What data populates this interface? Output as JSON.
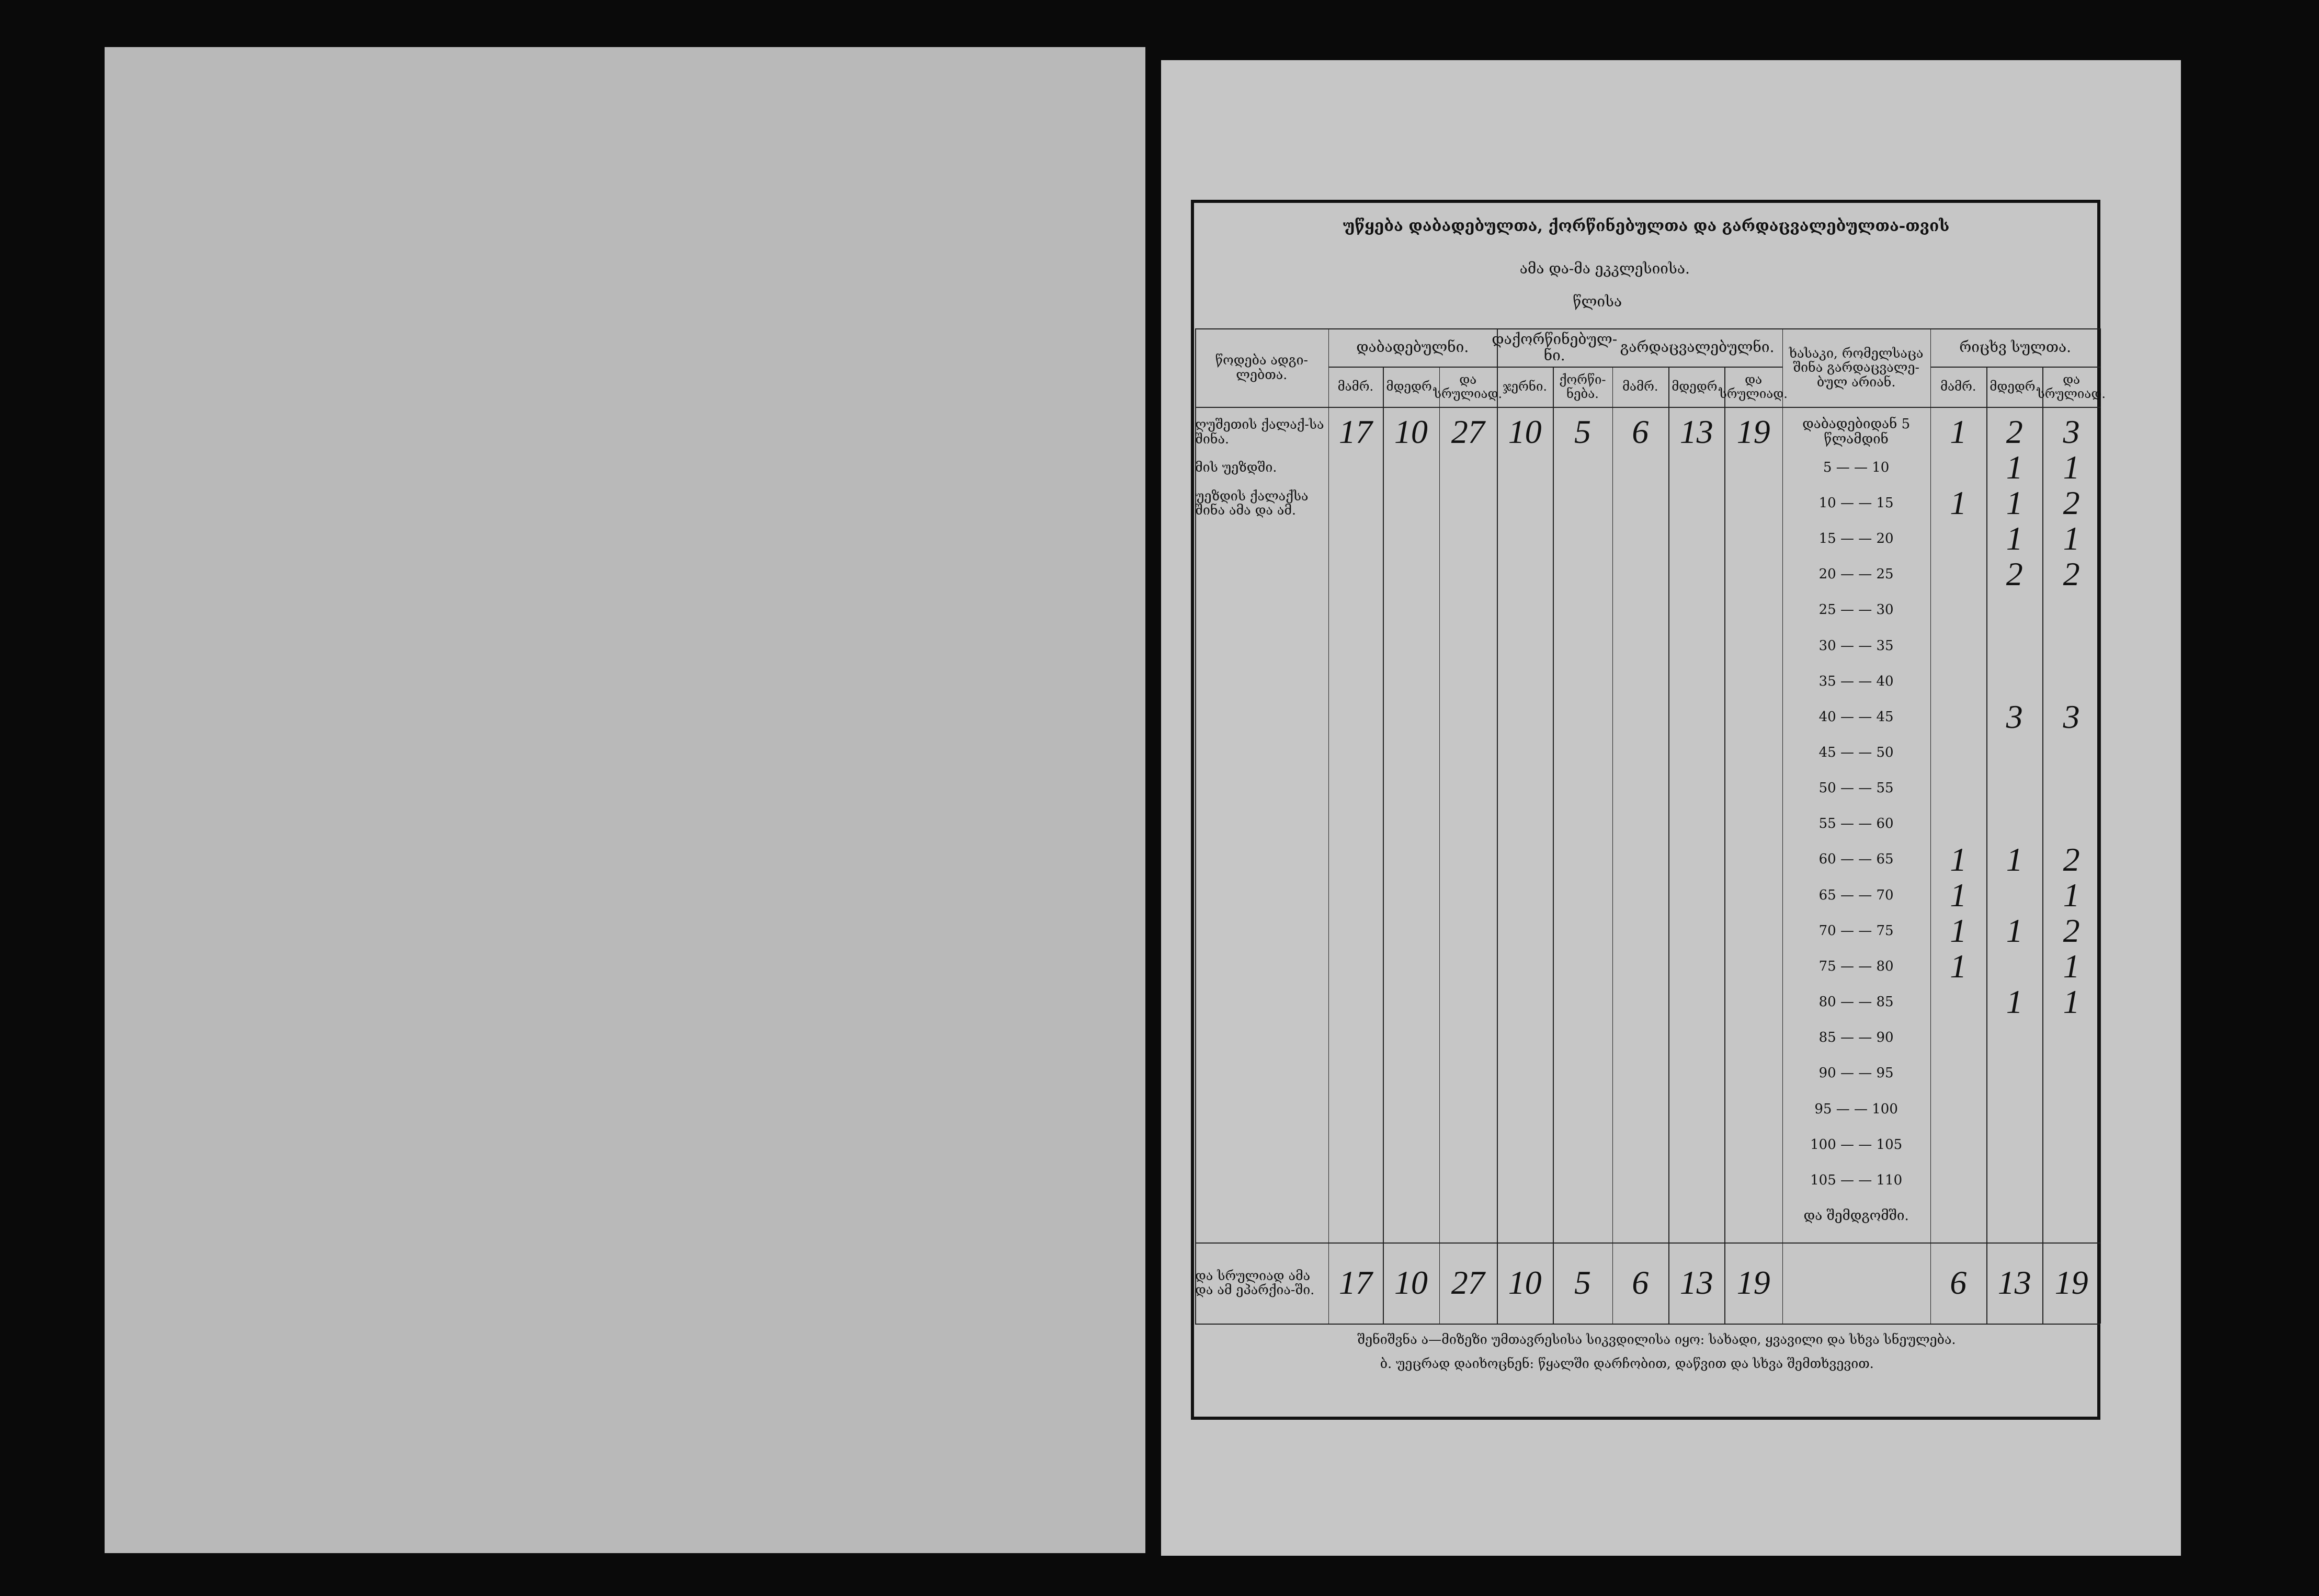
{
  "header": {
    "title": "უწყება დაბადებულთა, ქორწინებულთა და გარდაცვალებულთა-თვის",
    "church_label": "ამა და-მა ეკკლესიისა.",
    "year_label": "წლისა"
  },
  "table": {
    "group_headers": [
      "დაბადებულნი.",
      "დაქორწინებულ-ნი.",
      "გარდაცვალებულნი.",
      "რიცხვ სულთა."
    ],
    "column_headers": [
      "წოდება ადგი-ლებთა.",
      "მამრ.",
      "მდედრ.",
      "და სრულიად.",
      "ჯერნი.",
      "ქორწი-ნება.",
      "მამრ.",
      "მდედრ.",
      "და სრულიად.",
      "ხასაკი, რომელსაცა შინა გარდაცვალე-ბულ არიან.",
      "მამრ.",
      "მდედრ.",
      "და სრულიად."
    ],
    "rows": [
      [
        "ღუშეთის ქალაქ-სა შინა.",
        17,
        10,
        27,
        10,
        5,
        6,
        13,
        19,
        "დაბადებიდან 5 წლამდინ",
        1,
        2,
        3
      ],
      [
        "მის უეზდში.",
        null,
        null,
        null,
        null,
        null,
        null,
        null,
        null,
        "5 — — 10",
        null,
        1,
        1
      ],
      [
        "უეზდის ქალაქსა შინა ამა და ამ.",
        null,
        null,
        null,
        null,
        null,
        null,
        null,
        null,
        "10 — — 15",
        1,
        1,
        2
      ],
      [
        null,
        null,
        null,
        null,
        null,
        null,
        null,
        null,
        null,
        "15 — — 20",
        null,
        1,
        1
      ],
      [
        null,
        null,
        null,
        null,
        null,
        null,
        null,
        null,
        null,
        "20 — — 25",
        null,
        2,
        2
      ],
      [
        null,
        null,
        null,
        null,
        null,
        null,
        null,
        null,
        null,
        "25 — — 30",
        null,
        null,
        null
      ],
      [
        null,
        null,
        null,
        null,
        null,
        null,
        null,
        null,
        null,
        "30 — — 35",
        null,
        null,
        null
      ],
      [
        null,
        null,
        null,
        null,
        null,
        null,
        null,
        null,
        null,
        "35 — — 40",
        null,
        null,
        null
      ],
      [
        null,
        null,
        null,
        null,
        null,
        null,
        null,
        null,
        null,
        "40 — — 45",
        null,
        3,
        3
      ],
      [
        null,
        null,
        null,
        null,
        null,
        null,
        null,
        null,
        null,
        "45 — — 50",
        null,
        null,
        null
      ],
      [
        null,
        null,
        null,
        null,
        null,
        null,
        null,
        null,
        null,
        "50 — — 55",
        null,
        null,
        null
      ],
      [
        null,
        null,
        null,
        null,
        null,
        null,
        null,
        null,
        null,
        "55 — — 60",
        null,
        null,
        null
      ],
      [
        null,
        null,
        null,
        null,
        null,
        null,
        null,
        null,
        null,
        "60 — — 65",
        1,
        1,
        2
      ],
      [
        null,
        null,
        null,
        null,
        null,
        null,
        null,
        null,
        null,
        "65 — — 70",
        1,
        null,
        1
      ],
      [
        null,
        null,
        null,
        null,
        null,
        null,
        null,
        null,
        null,
        "70 — — 75",
        1,
        1,
        2
      ],
      [
        null,
        null,
        null,
        null,
        null,
        null,
        null,
        null,
        null,
        "75 — — 80",
        1,
        null,
        1
      ],
      [
        null,
        null,
        null,
        null,
        null,
        null,
        null,
        null,
        null,
        "80 — — 85",
        null,
        1,
        1
      ],
      [
        null,
        null,
        null,
        null,
        null,
        null,
        null,
        null,
        null,
        "85 — — 90",
        null,
        null,
        null
      ],
      [
        null,
        null,
        null,
        null,
        null,
        null,
        null,
        null,
        null,
        "90 — — 95",
        null,
        null,
        null
      ],
      [
        null,
        null,
        null,
        null,
        null,
        null,
        null,
        null,
        null,
        "95 — — 100",
        null,
        null,
        null
      ],
      [
        null,
        null,
        null,
        null,
        null,
        null,
        null,
        null,
        null,
        "100 — — 105",
        null,
        null,
        null
      ],
      [
        null,
        null,
        null,
        null,
        null,
        null,
        null,
        null,
        null,
        "105 — — 110",
        null,
        null,
        null
      ],
      [
        null,
        null,
        null,
        null,
        null,
        null,
        null,
        null,
        null,
        "და შემდგომში.",
        null,
        null,
        null
      ]
    ],
    "totals": [
      "და სრულიად ამა და ამ ეპარქია-ში.",
      17,
      10,
      27,
      10,
      5,
      6,
      13,
      19,
      null,
      6,
      13,
      19
    ]
  },
  "footer": {
    "note_a": "შენიშვნა ა—მიზეზი უმთავრესისა სიკვდილისა იყო: სახადი, ყვავილი და სხვა სნეულება.",
    "note_b": "ბ. უეცრად დაიხოცნენ: წყალში დარჩობით, დაწვით და სხვა შემთხვევით."
  }
}
